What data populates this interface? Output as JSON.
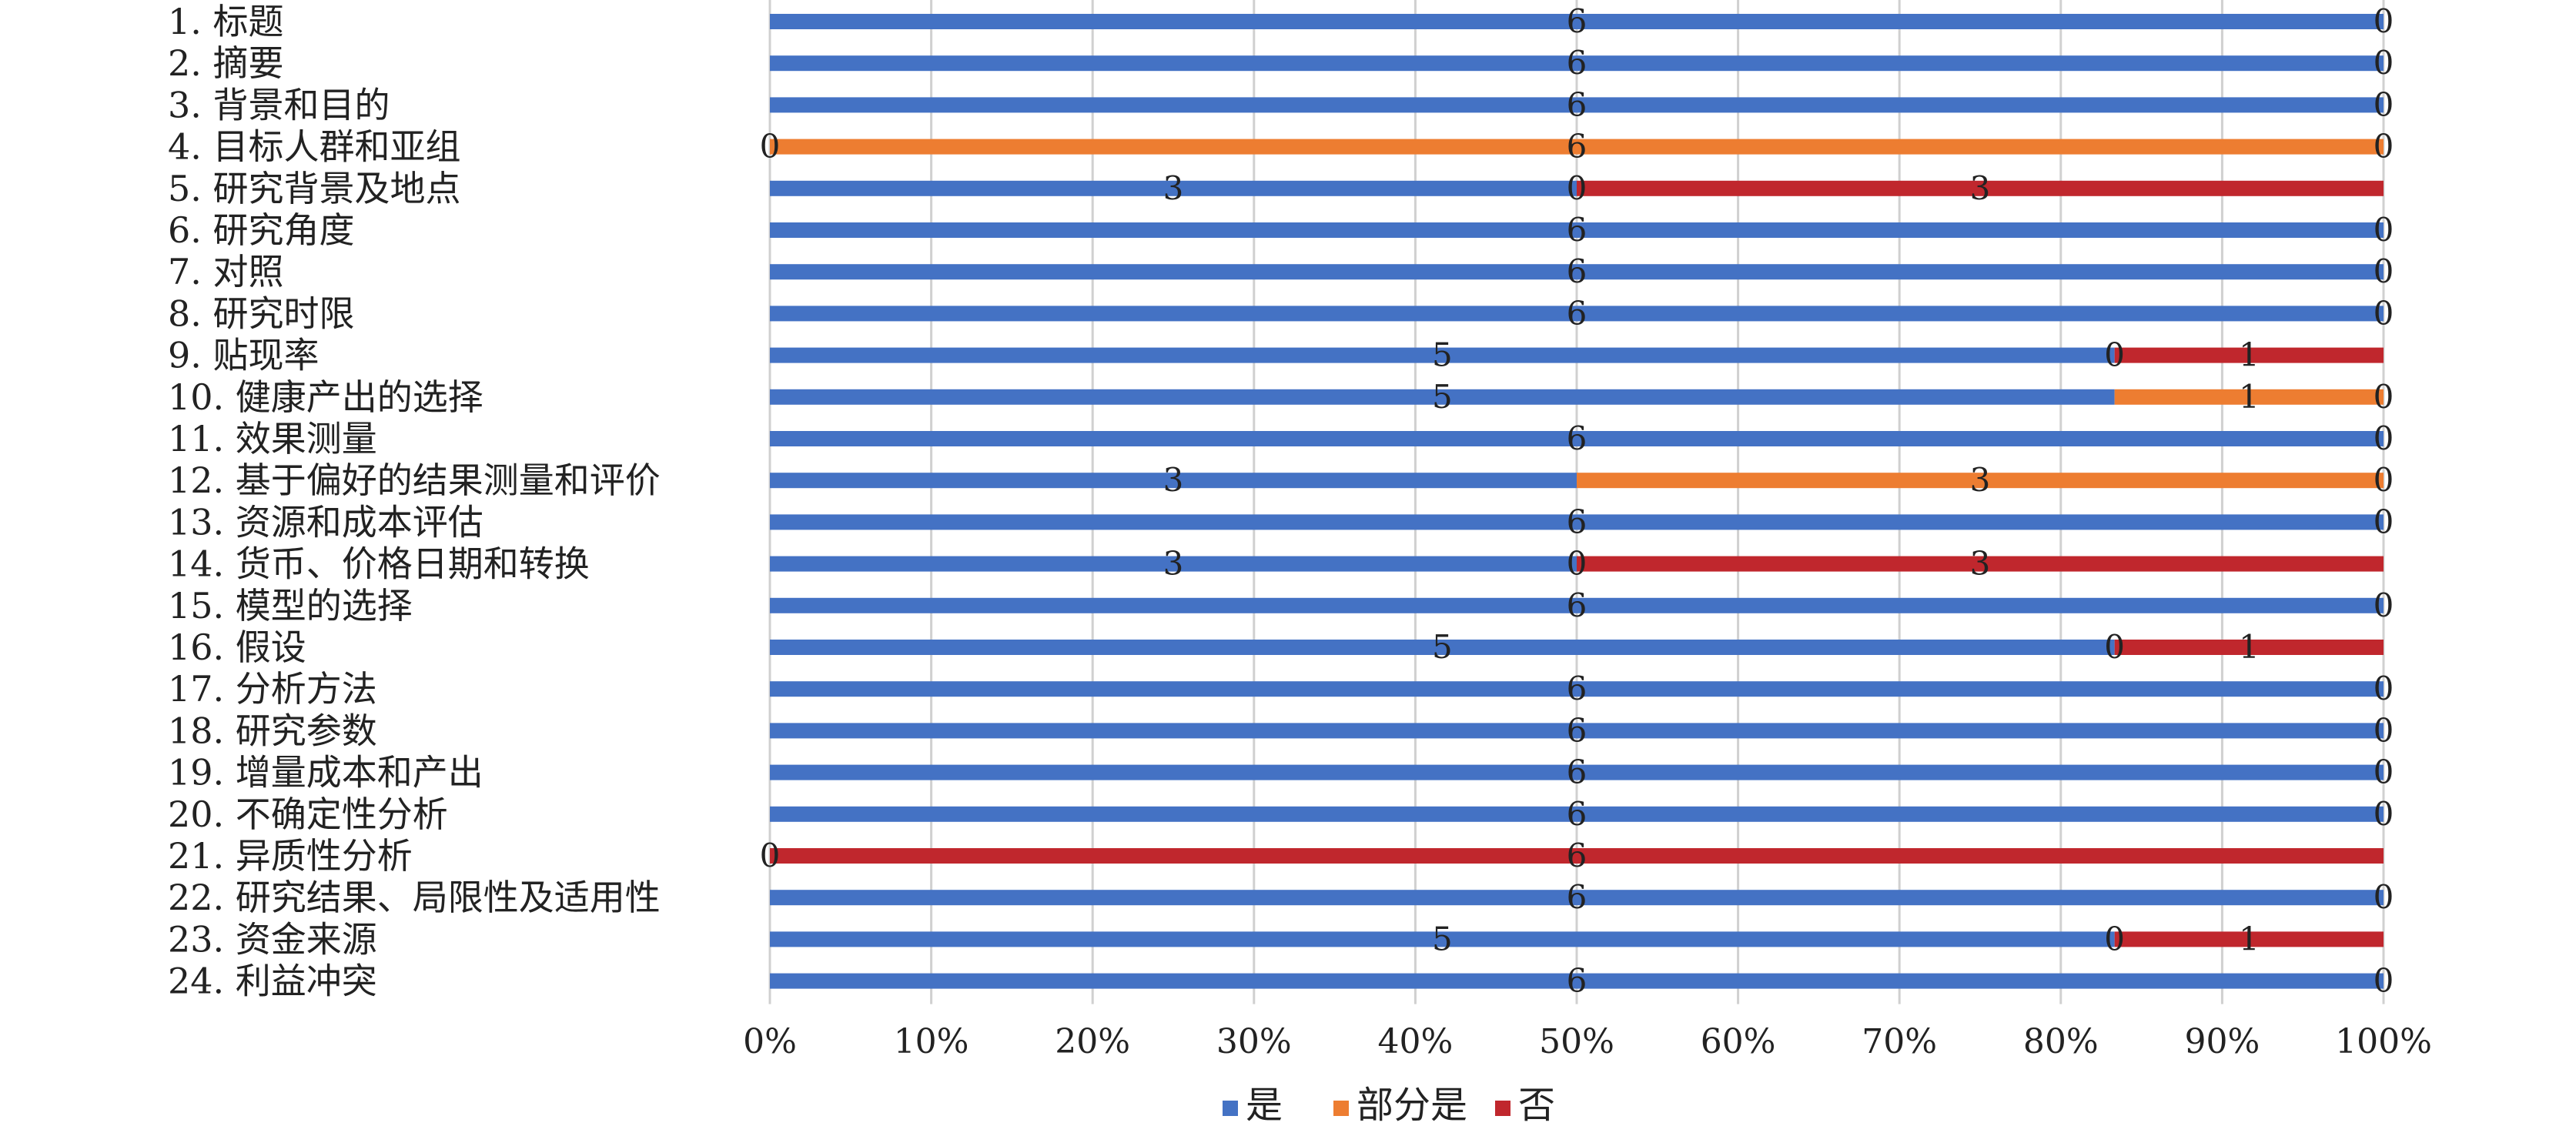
{
  "chart_data": {
    "type": "bar",
    "orientation": "horizontal",
    "stacking": "percent",
    "categories": [
      "1. 标题",
      "2. 摘要",
      "3. 背景和目的",
      "4. 目标人群和亚组",
      "5. 研究背景及地点",
      "6. 研究角度",
      "7. 对照",
      "8. 研究时限",
      "9. 贴现率",
      "10. 健康产出的选择",
      "11. 效果测量",
      "12. 基于偏好的结果测量和评价",
      "13. 资源和成本评估",
      "14. 货币、价格日期和转换",
      "15. 模型的选择",
      "16. 假设",
      "17. 分析方法",
      "18. 研究参数",
      "19. 增量成本和产出",
      "20. 不确定性分析",
      "21. 异质性分析",
      "22. 研究结果、局限性及适用性",
      "23. 资金来源",
      "24. 利益冲突"
    ],
    "series": [
      {
        "name": "是",
        "color": "#4472C4",
        "values": [
          6,
          6,
          6,
          0,
          3,
          6,
          6,
          6,
          5,
          5,
          6,
          3,
          6,
          3,
          6,
          5,
          6,
          6,
          6,
          6,
          0,
          6,
          5,
          6
        ]
      },
      {
        "name": "部分是",
        "color": "#ED7D31",
        "values": [
          0,
          0,
          0,
          6,
          0,
          0,
          0,
          0,
          0,
          1,
          0,
          3,
          0,
          0,
          0,
          0,
          0,
          0,
          0,
          0,
          0,
          0,
          0,
          0
        ]
      },
      {
        "name": "否",
        "color": "#C0272D",
        "values": [
          0,
          0,
          0,
          0,
          3,
          0,
          0,
          0,
          1,
          0,
          0,
          0,
          0,
          3,
          0,
          1,
          0,
          0,
          0,
          0,
          6,
          0,
          1,
          0
        ]
      }
    ],
    "data_labels": [
      [
        "6",
        null,
        "0"
      ],
      [
        "6",
        null,
        "0"
      ],
      [
        "6",
        null,
        "0"
      ],
      [
        "0",
        "6",
        "0"
      ],
      [
        "3",
        "0",
        "3"
      ],
      [
        "6",
        null,
        "0"
      ],
      [
        "6",
        null,
        "0"
      ],
      [
        "6",
        null,
        "0"
      ],
      [
        "5",
        "0",
        "1"
      ],
      [
        "5",
        "1",
        "0"
      ],
      [
        "6",
        null,
        "0"
      ],
      [
        "3",
        "3",
        "0"
      ],
      [
        "6",
        null,
        "0"
      ],
      [
        "3",
        "0",
        "3"
      ],
      [
        "6",
        null,
        "0"
      ],
      [
        "5",
        "0",
        "1"
      ],
      [
        "6",
        null,
        "0"
      ],
      [
        "6",
        null,
        "0"
      ],
      [
        "6",
        null,
        "0"
      ],
      [
        "6",
        null,
        "0"
      ],
      [
        "0",
        null,
        "6"
      ],
      [
        "6",
        null,
        "0"
      ],
      [
        "5",
        "0",
        "1"
      ],
      [
        "6",
        null,
        "0"
      ]
    ],
    "x_ticks": [
      "0%",
      "10%",
      "20%",
      "30%",
      "40%",
      "50%",
      "60%",
      "70%",
      "80%",
      "90%",
      "100%"
    ],
    "xlim": [
      0,
      100
    ],
    "grid": "vertical",
    "legend": {
      "position": "bottom-center",
      "entries": [
        "是",
        "部分是",
        "否"
      ]
    }
  }
}
